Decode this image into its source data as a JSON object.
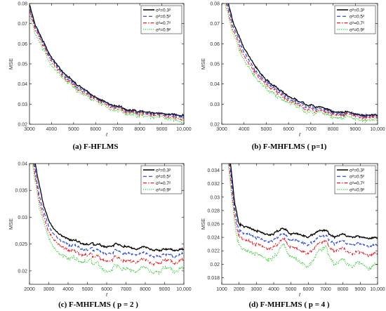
{
  "colors": {
    "sigma_0.3": "#000000",
    "sigma_0.5": "#1f3fdc",
    "sigma_0.7": "#e0202a",
    "sigma_0.9": "#34c734"
  },
  "legend": [
    "σ²=0.3²",
    "σ²=0.5²",
    "σ²=0.7²",
    "σ²=0.9²"
  ],
  "chart_data": [
    {
      "type": "line",
      "caption_label": "(a)",
      "caption_title": "F-HFLMS",
      "xlabel": "t",
      "ylabel": "MSE",
      "xlim": [
        3000,
        10000
      ],
      "ylim": [
        0.02,
        0.08
      ],
      "xticks": [
        3000,
        4000,
        5000,
        6000,
        7000,
        8000,
        9000,
        10000
      ],
      "xtick_labels": [
        "3000",
        "4000",
        "5000",
        "6000",
        "7000",
        "8000",
        "9000",
        "10,000"
      ],
      "yticks": [
        0.02,
        0.03,
        0.04,
        0.05,
        0.06,
        0.07,
        0.08
      ],
      "ytick_labels": [
        "0.02",
        "0.03",
        "0.04",
        "0.05",
        "0.06",
        "0.07",
        "0.08"
      ],
      "legend_position": "top-right",
      "grid": false,
      "series": [
        {
          "name": "σ²=0.3²",
          "style": "solid",
          "x": [
            3000,
            3250,
            3500,
            3750,
            4000,
            4500,
            5000,
            5500,
            6000,
            6500,
            7000,
            7500,
            8000,
            8500,
            9000,
            9500,
            10000
          ],
          "y": [
            0.08,
            0.07,
            0.064,
            0.058,
            0.053,
            0.046,
            0.041,
            0.037,
            0.033,
            0.031,
            0.029,
            0.027,
            0.0265,
            0.026,
            0.025,
            0.025,
            0.0245
          ]
        },
        {
          "name": "σ²=0.5²",
          "style": "dashed",
          "x": [
            3000,
            3250,
            3500,
            3750,
            4000,
            4500,
            5000,
            5500,
            6000,
            6500,
            7000,
            7500,
            8000,
            8500,
            9000,
            9500,
            10000
          ],
          "y": [
            0.078,
            0.069,
            0.063,
            0.057,
            0.052,
            0.045,
            0.04,
            0.036,
            0.0325,
            0.0305,
            0.0285,
            0.0265,
            0.026,
            0.0255,
            0.0245,
            0.0245,
            0.024
          ]
        },
        {
          "name": "σ²=0.7²",
          "style": "dashdot",
          "x": [
            3000,
            3250,
            3500,
            3750,
            4000,
            4500,
            5000,
            5500,
            6000,
            6500,
            7000,
            7500,
            8000,
            8500,
            9000,
            9500,
            10000
          ],
          "y": [
            0.077,
            0.068,
            0.062,
            0.056,
            0.051,
            0.044,
            0.039,
            0.035,
            0.032,
            0.03,
            0.028,
            0.026,
            0.0255,
            0.025,
            0.024,
            0.0235,
            0.0232
          ]
        },
        {
          "name": "σ²=0.9²",
          "style": "dotted",
          "x": [
            3000,
            3250,
            3500,
            3750,
            4000,
            4500,
            5000,
            5500,
            6000,
            6500,
            7000,
            7500,
            8000,
            8500,
            9000,
            9500,
            10000
          ],
          "y": [
            0.075,
            0.066,
            0.06,
            0.054,
            0.049,
            0.043,
            0.038,
            0.034,
            0.031,
            0.029,
            0.027,
            0.025,
            0.0245,
            0.024,
            0.023,
            0.0225,
            0.022
          ]
        }
      ]
    },
    {
      "type": "line",
      "caption_label": "(b)",
      "caption_title": "F-MHFLMS",
      "caption_param": "( p=1)",
      "xlabel": "t",
      "ylabel": "MSE",
      "xlim": [
        3000,
        10000
      ],
      "ylim": [
        0.02,
        0.08
      ],
      "xticks": [
        3000,
        4000,
        5000,
        6000,
        7000,
        8000,
        9000,
        10000
      ],
      "xtick_labels": [
        "3000",
        "4000",
        "5000",
        "6000",
        "7000",
        "8000",
        "9000",
        "10,000"
      ],
      "yticks": [
        0.02,
        0.03,
        0.04,
        0.05,
        0.06,
        0.07,
        0.08
      ],
      "ytick_labels": [
        "0.02",
        "0.03",
        "0.04",
        "0.05",
        "0.06",
        "0.07",
        "0.08"
      ],
      "legend_position": "top-right",
      "grid": false,
      "series": [
        {
          "name": "σ²=0.3²",
          "style": "solid",
          "x": [
            3300,
            3500,
            3750,
            4000,
            4500,
            5000,
            5500,
            6000,
            6500,
            7000,
            7500,
            8000,
            8500,
            9000,
            9500,
            10000
          ],
          "y": [
            0.08,
            0.071,
            0.064,
            0.058,
            0.049,
            0.042,
            0.038,
            0.034,
            0.031,
            0.0295,
            0.028,
            0.0265,
            0.026,
            0.025,
            0.0245,
            0.0243
          ]
        },
        {
          "name": "σ²=0.5²",
          "style": "dashed",
          "x": [
            3250,
            3500,
            3750,
            4000,
            4500,
            5000,
            5500,
            6000,
            6500,
            7000,
            7500,
            8000,
            8500,
            9000,
            9500,
            10000
          ],
          "y": [
            0.08,
            0.069,
            0.062,
            0.056,
            0.047,
            0.041,
            0.037,
            0.033,
            0.03,
            0.0285,
            0.027,
            0.026,
            0.025,
            0.0245,
            0.024,
            0.0238
          ]
        },
        {
          "name": "σ²=0.7²",
          "style": "dashdot",
          "x": [
            3200,
            3500,
            3750,
            4000,
            4500,
            5000,
            5500,
            6000,
            6500,
            7000,
            7500,
            8000,
            8500,
            9000,
            9500,
            10000
          ],
          "y": [
            0.08,
            0.067,
            0.06,
            0.054,
            0.046,
            0.04,
            0.036,
            0.032,
            0.029,
            0.0275,
            0.026,
            0.0253,
            0.0245,
            0.024,
            0.0233,
            0.023
          ]
        },
        {
          "name": "σ²=0.9²",
          "style": "dotted",
          "x": [
            3150,
            3500,
            3750,
            4000,
            4500,
            5000,
            5500,
            6000,
            6500,
            7000,
            7500,
            8000,
            8500,
            9000,
            9500,
            10000
          ],
          "y": [
            0.08,
            0.065,
            0.058,
            0.052,
            0.044,
            0.038,
            0.034,
            0.031,
            0.028,
            0.026,
            0.025,
            0.024,
            0.0232,
            0.0225,
            0.022,
            0.0215
          ]
        }
      ]
    },
    {
      "type": "line",
      "caption_label": "(c)",
      "caption_title": "F-MHFLMS",
      "caption_param": "( p = 2 )",
      "xlabel": "t",
      "ylabel": "MSE",
      "xlim": [
        2000,
        10000
      ],
      "ylim": [
        0.0175,
        0.04
      ],
      "xticks": [
        2000,
        3000,
        4000,
        5000,
        6000,
        7000,
        8000,
        9000,
        10000
      ],
      "xtick_labels": [
        "2000",
        "3000",
        "4000",
        "5000",
        "6000",
        "7000",
        "8000",
        "9000",
        "10,000"
      ],
      "yticks": [
        0.02,
        0.025,
        0.03,
        0.035,
        0.04
      ],
      "ytick_labels": [
        "0.02",
        "0.025",
        "0.03",
        "0.035",
        "0.04"
      ],
      "legend_position": "top-right",
      "grid": false,
      "series": [
        {
          "name": "σ²=0.3²",
          "style": "solid",
          "x": [
            2300,
            2500,
            2750,
            3000,
            3250,
            3500,
            4000,
            4500,
            5000,
            5500,
            6000,
            6500,
            7000,
            7500,
            8000,
            8500,
            9000,
            9500,
            10000
          ],
          "y": [
            0.04,
            0.036,
            0.032,
            0.0295,
            0.028,
            0.027,
            0.026,
            0.0255,
            0.025,
            0.025,
            0.0245,
            0.025,
            0.0245,
            0.024,
            0.0245,
            0.0238,
            0.024,
            0.0238,
            0.024
          ]
        },
        {
          "name": "σ²=0.5²",
          "style": "dashed",
          "x": [
            2250,
            2500,
            2750,
            3000,
            3250,
            3500,
            4000,
            4500,
            5000,
            5500,
            6000,
            6500,
            7000,
            7500,
            8000,
            8500,
            9000,
            9500,
            10000
          ],
          "y": [
            0.04,
            0.034,
            0.031,
            0.0285,
            0.027,
            0.026,
            0.025,
            0.0245,
            0.024,
            0.024,
            0.0232,
            0.0238,
            0.0232,
            0.023,
            0.0234,
            0.0226,
            0.023,
            0.0226,
            0.0232
          ]
        },
        {
          "name": "σ²=0.7²",
          "style": "dashdot",
          "x": [
            2200,
            2500,
            2750,
            3000,
            3250,
            3500,
            4000,
            4500,
            5000,
            5500,
            6000,
            6500,
            7000,
            7500,
            8000,
            8500,
            9000,
            9500,
            10000
          ],
          "y": [
            0.04,
            0.033,
            0.03,
            0.0275,
            0.026,
            0.025,
            0.024,
            0.0235,
            0.023,
            0.0228,
            0.0218,
            0.0226,
            0.0218,
            0.0216,
            0.0222,
            0.0212,
            0.022,
            0.0214,
            0.022
          ]
        },
        {
          "name": "σ²=0.9²",
          "style": "dotted",
          "x": [
            2150,
            2500,
            2750,
            3000,
            3250,
            3500,
            4000,
            4500,
            5000,
            5500,
            6000,
            6500,
            7000,
            7500,
            8000,
            8500,
            9000,
            9500,
            10000
          ],
          "y": [
            0.04,
            0.032,
            0.029,
            0.0265,
            0.0245,
            0.0235,
            0.0225,
            0.0222,
            0.0218,
            0.0215,
            0.0198,
            0.021,
            0.0202,
            0.0198,
            0.0208,
            0.0195,
            0.0205,
            0.0198,
            0.0205
          ]
        }
      ]
    },
    {
      "type": "line",
      "caption_label": "(d)",
      "caption_title": "F-MHFLMS",
      "caption_param": "( p = 4 )",
      "xlabel": "t",
      "ylabel": "MSE",
      "xlim": [
        1000,
        10000
      ],
      "ylim": [
        0.017,
        0.035
      ],
      "xticks": [
        1000,
        2000,
        3000,
        4000,
        5000,
        6000,
        7000,
        8000,
        9000,
        10000
      ],
      "xtick_labels": [
        "1000",
        "2000",
        "3000",
        "4000",
        "5000",
        "6000",
        "7000",
        "8000",
        "9000",
        "10,000"
      ],
      "yticks": [
        0.018,
        0.02,
        0.022,
        0.024,
        0.026,
        0.028,
        0.03,
        0.032,
        0.034
      ],
      "ytick_labels": [
        "0.018",
        "0.02",
        "0.022",
        "0.024",
        "0.026",
        "0.028",
        "0.03",
        "0.032",
        "0.034"
      ],
      "legend_position": "top-right",
      "grid": false,
      "series": [
        {
          "name": "σ²=0.3²",
          "style": "solid",
          "x": [
            1500,
            1750,
            2000,
            2250,
            2500,
            3000,
            3500,
            4000,
            4500,
            5000,
            5500,
            6000,
            6500,
            7000,
            7500,
            8000,
            8500,
            9000,
            9500,
            10000
          ],
          "y": [
            0.035,
            0.029,
            0.026,
            0.0255,
            0.0255,
            0.025,
            0.0245,
            0.0245,
            0.0255,
            0.0245,
            0.0245,
            0.024,
            0.0248,
            0.025,
            0.024,
            0.0245,
            0.024,
            0.0242,
            0.0238,
            0.024
          ]
        },
        {
          "name": "σ²=0.5²",
          "style": "dashed",
          "x": [
            1450,
            1750,
            2000,
            2250,
            2500,
            3000,
            3500,
            4000,
            4500,
            5000,
            5500,
            6000,
            6500,
            7000,
            7500,
            8000,
            8500,
            9000,
            9500,
            10000
          ],
          "y": [
            0.035,
            0.028,
            0.025,
            0.0245,
            0.0245,
            0.024,
            0.0235,
            0.0235,
            0.0248,
            0.0235,
            0.0235,
            0.0228,
            0.0238,
            0.0242,
            0.023,
            0.0235,
            0.0228,
            0.0232,
            0.0226,
            0.023
          ]
        },
        {
          "name": "σ²=0.7²",
          "style": "dashdot",
          "x": [
            1400,
            1750,
            2000,
            2250,
            2500,
            3000,
            3500,
            4000,
            4500,
            5000,
            5500,
            6000,
            6500,
            7000,
            7500,
            8000,
            8500,
            9000,
            9500,
            10000
          ],
          "y": [
            0.035,
            0.027,
            0.024,
            0.0235,
            0.0235,
            0.023,
            0.0225,
            0.0224,
            0.024,
            0.0225,
            0.0222,
            0.0215,
            0.0228,
            0.0234,
            0.0218,
            0.0224,
            0.0215,
            0.022,
            0.0212,
            0.0218
          ]
        },
        {
          "name": "σ²=0.9²",
          "style": "dotted",
          "x": [
            1350,
            1750,
            2000,
            2250,
            2500,
            3000,
            3500,
            4000,
            4500,
            5000,
            5500,
            6000,
            6500,
            7000,
            7500,
            8000,
            8500,
            9000,
            9500,
            10000
          ],
          "y": [
            0.035,
            0.026,
            0.0225,
            0.022,
            0.022,
            0.0215,
            0.021,
            0.0208,
            0.0232,
            0.021,
            0.0205,
            0.0195,
            0.0215,
            0.0225,
            0.0198,
            0.0208,
            0.0195,
            0.0205,
            0.0192,
            0.0202
          ]
        }
      ]
    }
  ]
}
